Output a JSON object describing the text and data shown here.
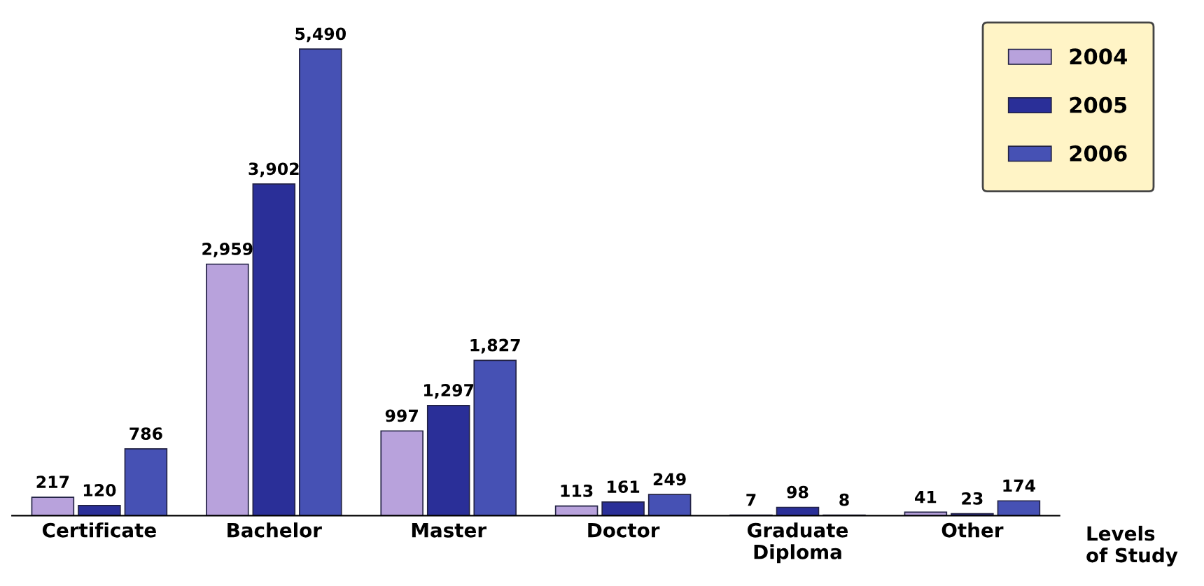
{
  "chart_data": {
    "type": "bar",
    "categories": [
      "Certificate",
      "Bachelor",
      "Master",
      "Doctor",
      "Graduate\nDiploma",
      "Other"
    ],
    "series": [
      {
        "name": "2004",
        "color": "#b8a2dc",
        "values": [
          217,
          2959,
          997,
          113,
          7,
          41
        ],
        "value_labels": [
          "217",
          "2,959",
          "997",
          "113",
          "7",
          "41"
        ]
      },
      {
        "name": "2005",
        "color": "#2a2f98",
        "values": [
          120,
          3902,
          1297,
          161,
          98,
          23
        ],
        "value_labels": [
          "120",
          "3,902",
          "1,297",
          "161",
          "98",
          "23"
        ]
      },
      {
        "name": "2006",
        "color": "#4651b4",
        "values": [
          786,
          5490,
          1827,
          249,
          8,
          174
        ],
        "value_labels": [
          "786",
          "5,490",
          "1,827",
          "249",
          "8",
          "174"
        ]
      }
    ],
    "xlabel": "Levels\nof Study",
    "legend": "top right",
    "grid": false
  }
}
